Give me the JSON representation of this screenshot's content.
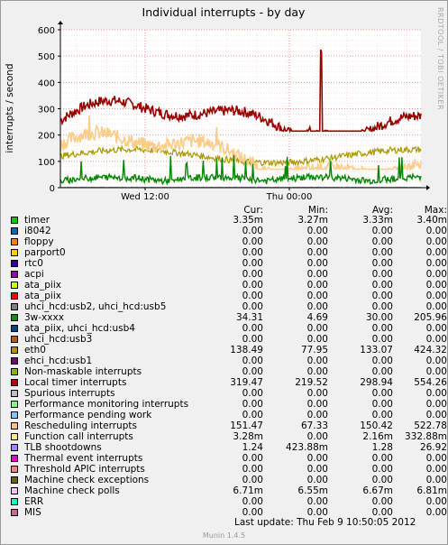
{
  "chart_data": {
    "type": "line",
    "title": "Individual interrupts - by day",
    "ylabel": "interrupts / second",
    "ylim": [
      0,
      600
    ],
    "yticks": [
      0,
      100,
      200,
      300,
      400,
      500,
      600
    ],
    "xticks": [
      "Wed 12:00",
      "Thu 00:00"
    ],
    "grid": true,
    "series": [
      {
        "name": "timer",
        "color": "#00cc00",
        "visible": true
      },
      {
        "name": "Local timer interrupts",
        "color": "#990000",
        "visible": true
      },
      {
        "name": "Rescheduling interrupts",
        "color": "#ffcc88",
        "visible": true
      },
      {
        "name": "eth0",
        "color": "#aa9900",
        "visible": true
      },
      {
        "name": "3w-xxxx",
        "color": "#008800",
        "visible": true
      },
      {
        "name": "TLB shootdowns",
        "color": "#aa88ff",
        "visible": true
      }
    ],
    "side_text": "RRDTOOL / TOBI OETIKER"
  },
  "legend": {
    "headers": {
      "cur": "Cur:",
      "min": "Min:",
      "avg": "Avg:",
      "max": "Max:"
    },
    "rows": [
      {
        "label": "timer",
        "color": "#00cc00",
        "cur": "3.35m",
        "min": "3.27m",
        "avg": "3.33m",
        "max": "3.40m"
      },
      {
        "label": "i8042",
        "color": "#0066b3",
        "cur": "0.00",
        "min": "0.00",
        "avg": "0.00",
        "max": "0.00"
      },
      {
        "label": "floppy",
        "color": "#ff8000",
        "cur": "0.00",
        "min": "0.00",
        "avg": "0.00",
        "max": "0.00"
      },
      {
        "label": "parport0",
        "color": "#ffcc00",
        "cur": "0.00",
        "min": "0.00",
        "avg": "0.00",
        "max": "0.00"
      },
      {
        "label": "rtc0",
        "color": "#330099",
        "cur": "0.00",
        "min": "0.00",
        "avg": "0.00",
        "max": "0.00"
      },
      {
        "label": "acpi",
        "color": "#990099",
        "cur": "0.00",
        "min": "0.00",
        "avg": "0.00",
        "max": "0.00"
      },
      {
        "label": "ata_piix",
        "color": "#ccff00",
        "cur": "0.00",
        "min": "0.00",
        "avg": "0.00",
        "max": "0.00"
      },
      {
        "label": "ata_piix",
        "color": "#ff0000",
        "cur": "0.00",
        "min": "0.00",
        "avg": "0.00",
        "max": "0.00"
      },
      {
        "label": "uhci_hcd:usb2, uhci_hcd:usb5",
        "color": "#808080",
        "cur": "0.00",
        "min": "0.00",
        "avg": "0.00",
        "max": "0.00"
      },
      {
        "label": "3w-xxxx",
        "color": "#008f00",
        "cur": "34.31",
        "min": "4.69",
        "avg": "30.00",
        "max": "205.96"
      },
      {
        "label": "ata_piix, uhci_hcd:usb4",
        "color": "#00487d",
        "cur": "0.00",
        "min": "0.00",
        "avg": "0.00",
        "max": "0.00"
      },
      {
        "label": "uhci_hcd:usb3",
        "color": "#b35a00",
        "cur": "0.00",
        "min": "0.00",
        "avg": "0.00",
        "max": "0.00"
      },
      {
        "label": "eth0",
        "color": "#b38f00",
        "cur": "138.49",
        "min": "77.95",
        "avg": "133.07",
        "max": "424.32"
      },
      {
        "label": "ehci_hcd:usb1",
        "color": "#6b006b",
        "cur": "0.00",
        "min": "0.00",
        "avg": "0.00",
        "max": "0.00"
      },
      {
        "label": "Non-maskable interrupts",
        "color": "#8fb300",
        "cur": "0.00",
        "min": "0.00",
        "avg": "0.00",
        "max": "0.00"
      },
      {
        "label": "Local timer interrupts",
        "color": "#b30000",
        "cur": "319.47",
        "min": "219.52",
        "avg": "298.94",
        "max": "554.26"
      },
      {
        "label": "Spurious interrupts",
        "color": "#bebebe",
        "cur": "0.00",
        "min": "0.00",
        "avg": "0.00",
        "max": "0.00"
      },
      {
        "label": "Performance monitoring interrupts",
        "color": "#80ff80",
        "cur": "0.00",
        "min": "0.00",
        "avg": "0.00",
        "max": "0.00"
      },
      {
        "label": "Performance pending work",
        "color": "#80c9ff",
        "cur": "0.00",
        "min": "0.00",
        "avg": "0.00",
        "max": "0.00"
      },
      {
        "label": "Rescheduling interrupts",
        "color": "#ffc080",
        "cur": "151.47",
        "min": "67.33",
        "avg": "150.42",
        "max": "522.78"
      },
      {
        "label": "Function call interrupts",
        "color": "#ffe680",
        "cur": "3.28m",
        "min": "0.00",
        "avg": "2.16m",
        "max": "332.88m"
      },
      {
        "label": "TLB shootdowns",
        "color": "#aa80ff",
        "cur": "1.24",
        "min": "423.88m",
        "avg": "1.28",
        "max": "26.92"
      },
      {
        "label": "Thermal event interrupts",
        "color": "#ee00cc",
        "cur": "0.00",
        "min": "0.00",
        "avg": "0.00",
        "max": "0.00"
      },
      {
        "label": "Threshold APIC interrupts",
        "color": "#ff8080",
        "cur": "0.00",
        "min": "0.00",
        "avg": "0.00",
        "max": "0.00"
      },
      {
        "label": "Machine check exceptions",
        "color": "#666600",
        "cur": "0.00",
        "min": "0.00",
        "avg": "0.00",
        "max": "0.00"
      },
      {
        "label": "Machine check polls",
        "color": "#ffbfff",
        "cur": "6.71m",
        "min": "6.55m",
        "avg": "6.67m",
        "max": "6.81m"
      },
      {
        "label": "ERR",
        "color": "#00ffcc",
        "cur": "0.00",
        "min": "0.00",
        "avg": "0.00",
        "max": "0.00"
      },
      {
        "label": "MIS",
        "color": "#cc6699",
        "cur": "0.00",
        "min": "0.00",
        "avg": "0.00",
        "max": "0.00"
      }
    ]
  },
  "footer": {
    "last_update": "Last update:  Thu Feb  9 10:50:05 2012",
    "version": "Munin 1.4.5"
  }
}
